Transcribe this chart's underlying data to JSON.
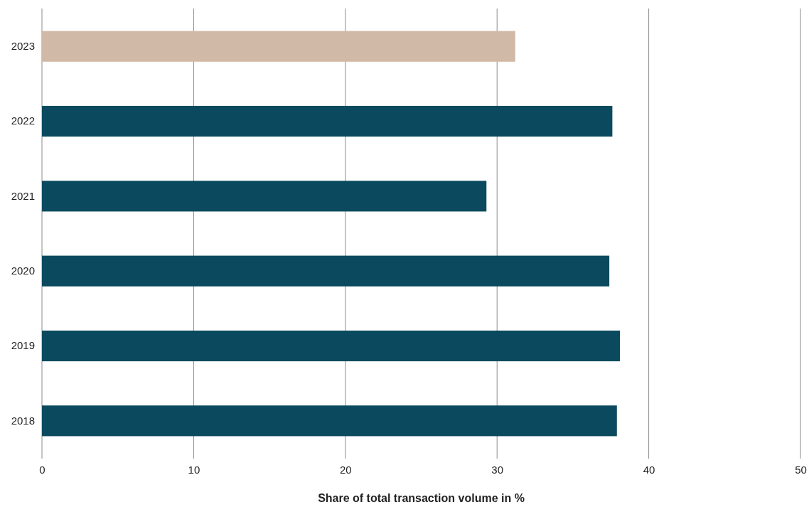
{
  "chart_data": {
    "type": "bar",
    "orientation": "horizontal",
    "xlabel": "Share of total transaction volume in %",
    "categories": [
      "2023",
      "2022",
      "2021",
      "2020",
      "2019",
      "2018"
    ],
    "values": [
      31.2,
      37.6,
      29.3,
      37.4,
      38.1,
      37.9
    ],
    "colors": [
      "#d1b9a8",
      "#0b4a5e",
      "#0b4a5e",
      "#0b4a5e",
      "#0b4a5e",
      "#0b4a5e"
    ],
    "xlim": [
      0,
      50
    ],
    "xticks": [
      0,
      10,
      20,
      30,
      40,
      50
    ],
    "grid": "x"
  }
}
